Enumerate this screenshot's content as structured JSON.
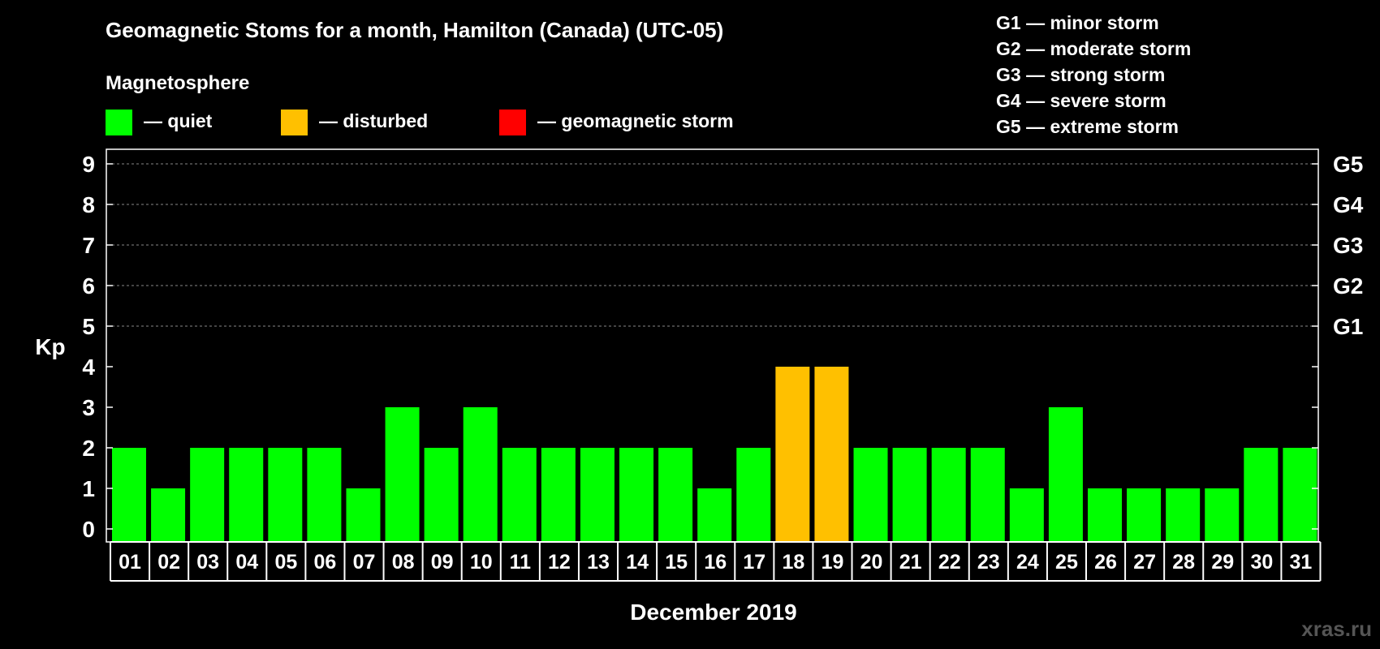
{
  "header": {
    "title": "Geomagnetic Stoms for a month, Hamilton (Canada) (UTC-05)",
    "legend_title": "Magnetosphere"
  },
  "legend": [
    {
      "color": "#00ff00",
      "label": "— quiet"
    },
    {
      "color": "#ffc000",
      "label": "— disturbed"
    },
    {
      "color": "#ff0000",
      "label": "— geomagnetic storm"
    }
  ],
  "storm_scale": [
    {
      "label": "G1 — minor storm"
    },
    {
      "label": "G2 — moderate storm"
    },
    {
      "label": "G3 — strong storm"
    },
    {
      "label": "G4 — severe storm"
    },
    {
      "label": "G5 — extreme storm"
    }
  ],
  "watermark": "xras.ru",
  "chart_data": {
    "type": "bar",
    "title": "Geomagnetic Stoms for a month, Hamilton (Canada) (UTC-05)",
    "xlabel": "December 2019",
    "ylabel": "Kp",
    "ylim": [
      0,
      9
    ],
    "yticks": [
      0,
      1,
      2,
      3,
      4,
      5,
      6,
      7,
      8,
      9
    ],
    "right_axis_labels": [
      {
        "value": 5,
        "label": "G1"
      },
      {
        "value": 6,
        "label": "G2"
      },
      {
        "value": 7,
        "label": "G3"
      },
      {
        "value": 8,
        "label": "G4"
      },
      {
        "value": 9,
        "label": "G5"
      }
    ],
    "gridlines": [
      5,
      6,
      7,
      8,
      9
    ],
    "categories": [
      "01",
      "02",
      "03",
      "04",
      "05",
      "06",
      "07",
      "08",
      "09",
      "10",
      "11",
      "12",
      "13",
      "14",
      "15",
      "16",
      "17",
      "18",
      "19",
      "20",
      "21",
      "22",
      "23",
      "24",
      "25",
      "26",
      "27",
      "28",
      "29",
      "30",
      "31"
    ],
    "values": [
      2,
      1,
      2,
      2,
      2,
      2,
      1,
      3,
      2,
      3,
      2,
      2,
      2,
      2,
      2,
      1,
      2,
      4,
      4,
      2,
      2,
      2,
      2,
      1,
      3,
      1,
      1,
      1,
      1,
      2,
      2
    ],
    "status": [
      "quiet",
      "quiet",
      "quiet",
      "quiet",
      "quiet",
      "quiet",
      "quiet",
      "quiet",
      "quiet",
      "quiet",
      "quiet",
      "quiet",
      "quiet",
      "quiet",
      "quiet",
      "quiet",
      "quiet",
      "disturbed",
      "disturbed",
      "quiet",
      "quiet",
      "quiet",
      "quiet",
      "quiet",
      "quiet",
      "quiet",
      "quiet",
      "quiet",
      "quiet",
      "quiet",
      "quiet"
    ],
    "status_colors": {
      "quiet": "#00ff00",
      "disturbed": "#ffc000",
      "storm": "#ff0000"
    }
  }
}
